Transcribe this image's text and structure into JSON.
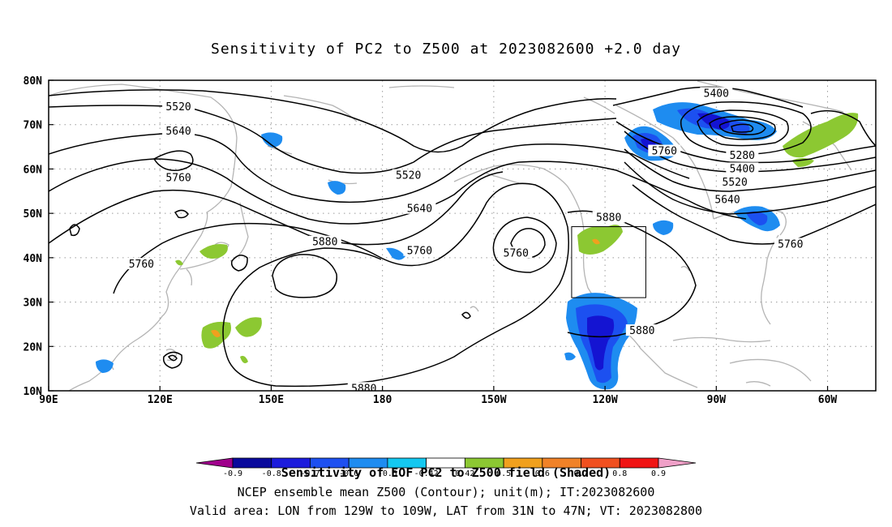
{
  "title": "Sensitivity of PC2 to Z500 at 2023082600 +2.0 day",
  "map": {
    "lon_labels": [
      "90E",
      "120E",
      "150E",
      "180",
      "150W",
      "120W",
      "90W",
      "60W"
    ],
    "lon_values": [
      90,
      120,
      150,
      180,
      210,
      240,
      270,
      300
    ],
    "lat_labels": [
      "10N",
      "20N",
      "30N",
      "40N",
      "50N",
      "60N",
      "70N",
      "80N"
    ],
    "lat_values": [
      10,
      20,
      30,
      40,
      50,
      60,
      70,
      80
    ],
    "extent": {
      "lon": [
        90,
        313
      ],
      "lat": [
        10,
        80
      ]
    },
    "grid": "dotted",
    "valid_box": {
      "lon": [
        231,
        251
      ],
      "lat": [
        31,
        47
      ]
    },
    "contour_labels": [
      {
        "text": "5520",
        "lon": 125,
        "lat": 74
      },
      {
        "text": "5640",
        "lon": 125,
        "lat": 68.5
      },
      {
        "text": "5760",
        "lon": 125,
        "lat": 58
      },
      {
        "text": "5520",
        "lon": 187,
        "lat": 58.5
      },
      {
        "text": "5640",
        "lon": 190,
        "lat": 51
      },
      {
        "text": "5760",
        "lon": 190,
        "lat": 41.5
      },
      {
        "text": "5880",
        "lon": 164.5,
        "lat": 43.5
      },
      {
        "text": "5760",
        "lon": 216,
        "lat": 41
      },
      {
        "text": "5760",
        "lon": 256,
        "lat": 64
      },
      {
        "text": "5880",
        "lon": 241,
        "lat": 49
      },
      {
        "text": "5880",
        "lon": 250,
        "lat": 23.5
      },
      {
        "text": "5880",
        "lon": 175,
        "lat": 10.5
      },
      {
        "text": "5760",
        "lon": 115,
        "lat": 38.5
      },
      {
        "text": "5400",
        "lon": 270,
        "lat": 77
      },
      {
        "text": "5280",
        "lon": 277,
        "lat": 63
      },
      {
        "text": "5400",
        "lon": 277,
        "lat": 60
      },
      {
        "text": "5520",
        "lon": 275,
        "lat": 57
      },
      {
        "text": "5640",
        "lon": 273,
        "lat": 53
      },
      {
        "text": "5760",
        "lon": 290,
        "lat": 43
      }
    ]
  },
  "colorbar": {
    "levels": [
      "-0.9",
      "-0.8",
      "-0.7",
      "-0.6",
      "-0.5",
      "-0.42",
      "0.42",
      "0.5",
      "0.6",
      "0.7",
      "0.8",
      "0.9"
    ],
    "colors": [
      "#a0008c",
      "#0a0a9c",
      "#1c1cdc",
      "#1e50f0",
      "#1e8cf0",
      "#14c8f0",
      "#ffffff",
      "#8cc832",
      "#f0a01e",
      "#f08228",
      "#f05020",
      "#f01414",
      "#f0a0c8"
    ]
  },
  "captions": {
    "line1": "Sensitivity of EOF PC2 to Z500 field (Shaded)",
    "line2": "NCEP ensemble mean Z500 (Contour); unit(m); IT:2023082600",
    "line3": "Valid area: LON from 129W to 109W, LAT from 31N to 47N; VT: 2023082800"
  }
}
